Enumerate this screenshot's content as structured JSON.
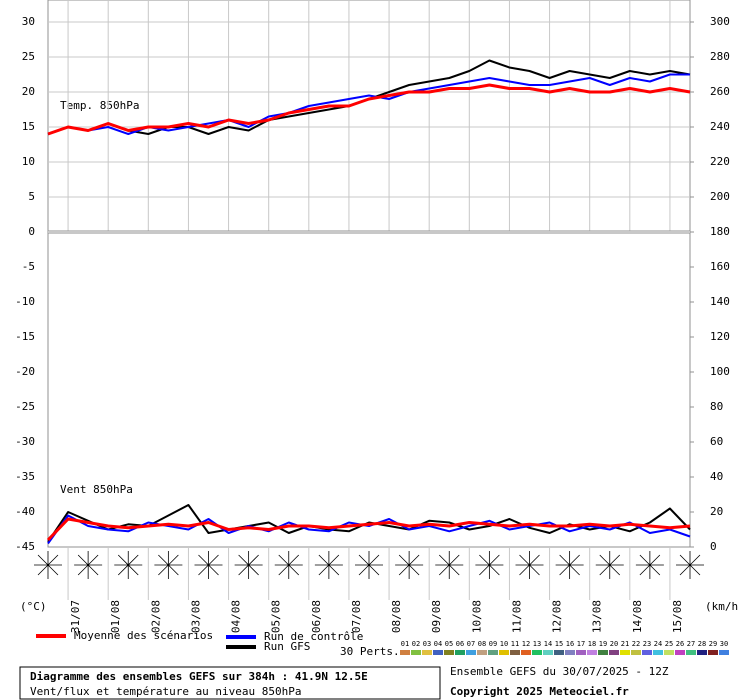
{
  "chart_data": {
    "type": "line",
    "title": "Diagramme des ensembles GEFS sur 384h : 41.9N 12.5E",
    "subtitle": "Vent/flux et température au niveau 850hPa",
    "run_info": "Ensemble GEFS du 30/07/2025 - 12Z",
    "copyright": "Copyright 2025 Meteociel.fr",
    "temp_panel_label": "Temp. 850hPa",
    "wind_panel_label": "Vent 850hPa",
    "y_unit": "(°C)",
    "y2_unit": "(km/h)",
    "xlim": [
      0,
      384
    ],
    "x": [
      0,
      12,
      24,
      36,
      48,
      60,
      72,
      84,
      96,
      108,
      120,
      132,
      144,
      156,
      168,
      180,
      192,
      204,
      216,
      228,
      240,
      252,
      264,
      276,
      288,
      300,
      312,
      324,
      336,
      348,
      360,
      372,
      384
    ],
    "xticks": [
      {
        "value": 12,
        "label": "31/07"
      },
      {
        "value": 36,
        "label": "01/08"
      },
      {
        "value": 60,
        "label": "02/08"
      },
      {
        "value": 84,
        "label": "03/08"
      },
      {
        "value": 108,
        "label": "04/08"
      },
      {
        "value": 132,
        "label": "05/08"
      },
      {
        "value": 156,
        "label": "06/08"
      },
      {
        "value": 180,
        "label": "07/08"
      },
      {
        "value": 204,
        "label": "08/08"
      },
      {
        "value": 228,
        "label": "09/08"
      },
      {
        "value": 252,
        "label": "10/08"
      },
      {
        "value": 276,
        "label": "11/08"
      },
      {
        "value": 300,
        "label": "12/08"
      },
      {
        "value": 324,
        "label": "13/08"
      },
      {
        "value": 348,
        "label": "14/08"
      },
      {
        "value": 372,
        "label": "15/08"
      }
    ],
    "ylim": [
      -45,
      33
    ],
    "yticks": [
      30,
      25,
      20,
      15,
      10,
      5,
      0,
      -5,
      -10,
      -15,
      -20,
      -25,
      -30,
      -35,
      -40,
      -45
    ],
    "y2lim": [
      0,
      312
    ],
    "y2ticks": [
      300,
      280,
      260,
      240,
      220,
      200,
      180,
      160,
      140,
      120,
      100,
      80,
      60,
      40,
      20,
      0
    ],
    "grid": true,
    "series": [
      {
        "name": "Moyenne des scénarios",
        "color": "#ff0000",
        "values": [
          14,
          15,
          14.5,
          15.5,
          14.5,
          15,
          15,
          15.5,
          15,
          16,
          15.5,
          16,
          17,
          17.5,
          18,
          18,
          19,
          19.5,
          20,
          20,
          20.5,
          20.5,
          21,
          20.5,
          20.5,
          20,
          20.5,
          20,
          20,
          20.5,
          20,
          20.5,
          20
        ],
        "wind_values": [
          4,
          16,
          14,
          12,
          11,
          12,
          13,
          12,
          14,
          10,
          11,
          10,
          12,
          12,
          11,
          12,
          13,
          14,
          12,
          13,
          12,
          14,
          13,
          12,
          13,
          12,
          12,
          13,
          12,
          13,
          12,
          11,
          12
        ]
      },
      {
        "name": "Run de contrôle",
        "color": "#0000ff",
        "values": [
          14,
          15,
          14.5,
          15,
          14,
          15,
          14.5,
          15,
          15.5,
          16,
          15,
          16.5,
          17,
          18,
          18.5,
          19,
          19.5,
          19,
          20,
          20.5,
          21,
          21.5,
          22,
          21.5,
          21,
          21,
          21.5,
          22,
          21,
          22,
          21.5,
          22.5,
          22.5
        ],
        "wind_values": [
          2,
          18,
          12,
          10,
          9,
          14,
          12,
          10,
          16,
          8,
          12,
          9,
          14,
          10,
          9,
          14,
          12,
          16,
          10,
          12,
          9,
          12,
          15,
          10,
          12,
          14,
          9,
          12,
          10,
          14,
          8,
          10,
          6
        ]
      },
      {
        "name": "Run GFS",
        "color": "#000000",
        "values": [
          14,
          15,
          14.5,
          15.5,
          14.5,
          14,
          15,
          15,
          14,
          15,
          14.5,
          16,
          16.5,
          17,
          17.5,
          18,
          19,
          20,
          21,
          21.5,
          22,
          23,
          24.5,
          23.5,
          23,
          22,
          23,
          22.5,
          22,
          23,
          22.5,
          23,
          22.5
        ],
        "wind_values": [
          3,
          20,
          15,
          10,
          13,
          12,
          18,
          24,
          8,
          10,
          12,
          14,
          8,
          12,
          10,
          9,
          14,
          12,
          10,
          15,
          14,
          10,
          12,
          16,
          11,
          8,
          13,
          10,
          12,
          9,
          14,
          22,
          10
        ]
      }
    ],
    "perts_label": "30 Perts.",
    "perts": [
      {
        "name": "01",
        "color": "#d08040"
      },
      {
        "name": "02",
        "color": "#80c040"
      },
      {
        "name": "03",
        "color": "#e0c040"
      },
      {
        "name": "04",
        "color": "#4060c0"
      },
      {
        "name": "05",
        "color": "#808020"
      },
      {
        "name": "06",
        "color": "#20a060"
      },
      {
        "name": "07",
        "color": "#40a0e0"
      },
      {
        "name": "08",
        "color": "#c0a080"
      },
      {
        "name": "09",
        "color": "#60a080"
      },
      {
        "name": "10",
        "color": "#e0c000"
      },
      {
        "name": "11",
        "color": "#806040"
      },
      {
        "name": "12",
        "color": "#e06020"
      },
      {
        "name": "13",
        "color": "#20c060"
      },
      {
        "name": "14",
        "color": "#60d0c0"
      },
      {
        "name": "15",
        "color": "#406080"
      },
      {
        "name": "16",
        "color": "#8080c0"
      },
      {
        "name": "17",
        "color": "#a060c0"
      },
      {
        "name": "18",
        "color": "#c080e0"
      },
      {
        "name": "19",
        "color": "#408040"
      },
      {
        "name": "20",
        "color": "#804080"
      },
      {
        "name": "21",
        "color": "#e0e000"
      },
      {
        "name": "22",
        "color": "#c0c040"
      },
      {
        "name": "23",
        "color": "#6060e0"
      },
      {
        "name": "24",
        "color": "#40c0e0"
      },
      {
        "name": "25",
        "color": "#c0e060"
      },
      {
        "name": "26",
        "color": "#c040c0"
      },
      {
        "name": "27",
        "color": "#40c080"
      },
      {
        "name": "28",
        "color": "#202080"
      },
      {
        "name": "29",
        "color": "#802020"
      },
      {
        "name": "30",
        "color": "#4080e0"
      }
    ]
  }
}
